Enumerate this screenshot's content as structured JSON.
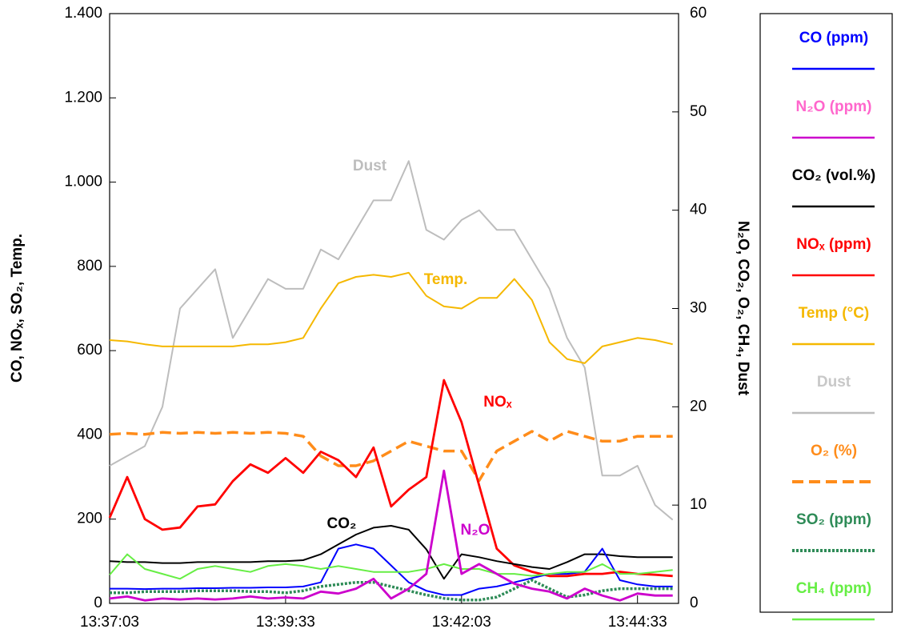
{
  "chart_data": {
    "type": "line",
    "y_label": "CO, NOₓ, SO₂, Temp.",
    "y2_label": "N₂O, CO₂, O₂, CH₄, Dust",
    "x": [
      "13:37:03",
      "13:37:18",
      "13:37:33",
      "13:37:48",
      "13:38:03",
      "13:38:18",
      "13:38:33",
      "13:38:48",
      "13:39:03",
      "13:39:18",
      "13:39:33",
      "13:39:48",
      "13:40:03",
      "13:40:18",
      "13:40:33",
      "13:40:48",
      "13:41:03",
      "13:41:18",
      "13:41:33",
      "13:41:48",
      "13:42:03",
      "13:42:18",
      "13:42:33",
      "13:42:48",
      "13:43:03",
      "13:43:18",
      "13:43:33",
      "13:43:48",
      "13:44:03",
      "13:44:18",
      "13:44:33",
      "13:44:48",
      "13:45:03"
    ],
    "xlim": [
      "13:37:03",
      "13:45:08"
    ],
    "xticks": [
      "13:37:03",
      "13:39:33",
      "13:42:03",
      "13:44:33"
    ],
    "ylim": [
      0,
      1400
    ],
    "yticks": [
      0,
      200,
      400,
      600,
      800,
      {
        "value": 1000,
        "label": "1.000"
      },
      {
        "value": 1200,
        "label": "1.200"
      },
      {
        "value": 1400,
        "label": "1.400"
      }
    ],
    "y2lim": [
      0,
      60
    ],
    "y2ticks": [
      0,
      10,
      20,
      30,
      40,
      50,
      60
    ],
    "series": [
      {
        "name": "CO (ppm)",
        "color": "#0000ff",
        "axis": "y",
        "style": "solid",
        "values": [
          35,
          35,
          34,
          35,
          35,
          36,
          36,
          37,
          37,
          38,
          38,
          40,
          50,
          130,
          140,
          130,
          90,
          50,
          30,
          20,
          20,
          35,
          40,
          50,
          60,
          70,
          70,
          75,
          130,
          55,
          45,
          40,
          40
        ]
      },
      {
        "name": "N₂O (ppm)",
        "color": "#cc00cc",
        "axis": "y2",
        "style": "solid",
        "values": [
          0.5,
          0.7,
          0.3,
          0.5,
          0.4,
          0.5,
          0.4,
          0.5,
          0.7,
          0.5,
          0.6,
          0.5,
          1.2,
          1,
          1.5,
          2.5,
          0.5,
          1.5,
          3,
          13.5,
          3,
          4,
          3,
          2,
          1.5,
          1.2,
          0.5,
          1.5,
          0.8,
          0.3,
          1,
          0.8,
          0.8
        ]
      },
      {
        "name": "CO₂ (vol.%)",
        "color": "#000000",
        "axis": "y2",
        "style": "solid",
        "values": [
          4.3,
          4.2,
          4.2,
          4.1,
          4.1,
          4.2,
          4.2,
          4.2,
          4.2,
          4.3,
          4.3,
          4.4,
          5,
          6,
          7,
          7.7,
          7.9,
          7.5,
          5.5,
          2.5,
          5,
          4.7,
          4.3,
          4,
          3.7,
          3.5,
          4.2,
          5,
          5,
          4.8,
          4.7,
          4.7,
          4.7
        ]
      },
      {
        "name": "NOₓ (ppm)",
        "color": "#ff0000",
        "axis": "y",
        "style": "solid",
        "values": [
          203,
          300,
          200,
          175,
          180,
          230,
          235,
          290,
          330,
          310,
          345,
          310,
          360,
          340,
          300,
          370,
          230,
          270,
          300,
          530,
          430,
          280,
          130,
          90,
          75,
          65,
          65,
          70,
          70,
          75,
          70,
          68,
          65
        ]
      },
      {
        "name": "Temp (°C)",
        "color": "#f5b800",
        "axis": "y",
        "style": "solid",
        "values": [
          625,
          622,
          615,
          610,
          610,
          610,
          610,
          610,
          615,
          615,
          620,
          630,
          700,
          760,
          775,
          780,
          775,
          785,
          730,
          705,
          700,
          725,
          725,
          770,
          720,
          620,
          580,
          570,
          610,
          620,
          630,
          625,
          615
        ]
      },
      {
        "name": "Dust",
        "color": "#bdbdbd",
        "axis": "y2",
        "style": "solid",
        "values": [
          14,
          15,
          16,
          20,
          30,
          32,
          34,
          27,
          30,
          33,
          32,
          32,
          36,
          35,
          38,
          41,
          41,
          45,
          38,
          37,
          39,
          40,
          38,
          38,
          35,
          32,
          27,
          24,
          13,
          13,
          14,
          10,
          8.5
        ]
      },
      {
        "name": "O₂ (%)",
        "color": "#ff8c1a",
        "axis": "y2",
        "style": "dashed",
        "values": [
          17.2,
          17.3,
          17.2,
          17.4,
          17.3,
          17.4,
          17.3,
          17.4,
          17.3,
          17.4,
          17.3,
          17,
          15,
          14,
          14,
          14.5,
          15.5,
          16.5,
          16,
          15.5,
          15.5,
          12.5,
          15.5,
          16.5,
          17.5,
          16.5,
          17.5,
          17,
          16.5,
          16.5,
          17,
          17,
          17
        ]
      },
      {
        "name": "SO₂ (ppm)",
        "color": "#2e8b57",
        "axis": "y",
        "style": "dotted",
        "values": [
          25,
          25,
          28,
          28,
          28,
          30,
          30,
          30,
          28,
          28,
          25,
          30,
          40,
          45,
          50,
          50,
          40,
          30,
          20,
          12,
          8,
          8,
          15,
          35,
          55,
          35,
          15,
          20,
          30,
          35,
          35,
          35,
          35
        ]
      },
      {
        "name": "CH₄ (ppm)",
        "color": "#66ee44",
        "axis": "y2",
        "style": "solid",
        "values": [
          2.9,
          5,
          3.5,
          3,
          2.5,
          3.5,
          3.8,
          3.5,
          3.2,
          3.8,
          4,
          3.8,
          3.5,
          3.8,
          3.5,
          3.2,
          3.2,
          3.2,
          3.5,
          4,
          3.5,
          3.5,
          3,
          3,
          2.8,
          3,
          3.2,
          3.2,
          4,
          3,
          3,
          3.2,
          3.4
        ]
      }
    ],
    "annotations": [
      {
        "text": "Dust",
        "color": "#bdbdbd"
      },
      {
        "text": "Temp.",
        "color": "#f5b800"
      },
      {
        "text": "NOₓ",
        "color": "#ff0000"
      },
      {
        "text": "N₂O",
        "color": "#cc00cc"
      },
      {
        "text": "CO₂",
        "color": "#000000"
      }
    ]
  }
}
